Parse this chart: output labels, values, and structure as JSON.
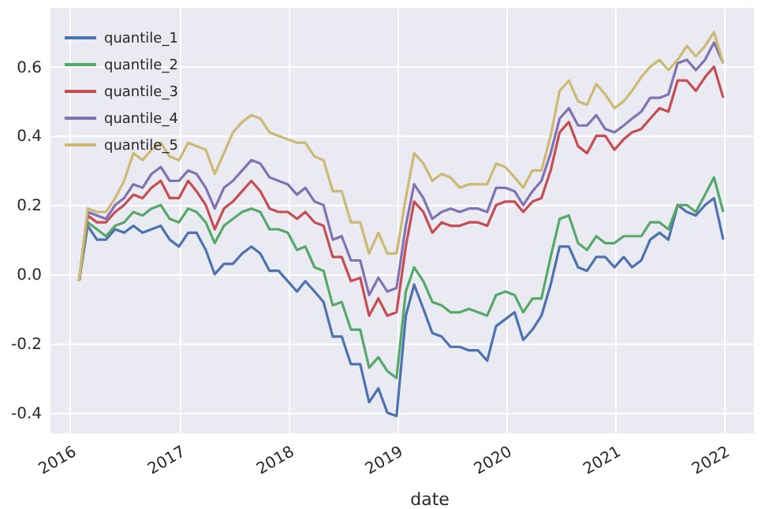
{
  "chart_data": {
    "type": "line",
    "xlabel": "date",
    "x": [
      "2016-01-31",
      "2016-02-29",
      "2016-03-31",
      "2016-04-30",
      "2016-05-31",
      "2016-06-30",
      "2016-07-31",
      "2016-08-31",
      "2016-09-30",
      "2016-10-31",
      "2016-11-30",
      "2016-12-31",
      "2017-01-31",
      "2017-02-28",
      "2017-03-31",
      "2017-04-30",
      "2017-05-31",
      "2017-06-30",
      "2017-07-31",
      "2017-08-31",
      "2017-09-30",
      "2017-10-31",
      "2017-11-30",
      "2017-12-31",
      "2018-01-31",
      "2018-02-28",
      "2018-03-31",
      "2018-04-30",
      "2018-05-31",
      "2018-06-30",
      "2018-07-31",
      "2018-08-31",
      "2018-09-30",
      "2018-10-31",
      "2018-11-30",
      "2018-12-31",
      "2019-01-31",
      "2019-02-28",
      "2019-03-31",
      "2019-04-30",
      "2019-05-31",
      "2019-06-30",
      "2019-07-31",
      "2019-08-31",
      "2019-09-30",
      "2019-10-31",
      "2019-11-30",
      "2019-12-31",
      "2020-01-31",
      "2020-02-29",
      "2020-03-31",
      "2020-04-30",
      "2020-05-31",
      "2020-06-30",
      "2020-07-31",
      "2020-08-31",
      "2020-09-30",
      "2020-10-31",
      "2020-11-30",
      "2020-12-31",
      "2021-01-31",
      "2021-02-28",
      "2021-03-31",
      "2021-04-30",
      "2021-05-31",
      "2021-06-30",
      "2021-07-31",
      "2021-08-31",
      "2021-09-30",
      "2021-10-31",
      "2021-11-30",
      "2021-12-31"
    ],
    "series": [
      {
        "name": "quantile_1",
        "color": "#4c72b0",
        "values": [
          -0.02,
          0.14,
          0.1,
          0.1,
          0.13,
          0.12,
          0.14,
          0.12,
          0.13,
          0.14,
          0.1,
          0.08,
          0.12,
          0.12,
          0.07,
          0.0,
          0.03,
          0.03,
          0.06,
          0.08,
          0.06,
          0.01,
          0.01,
          -0.02,
          -0.05,
          -0.02,
          -0.05,
          -0.08,
          -0.18,
          -0.18,
          -0.26,
          -0.26,
          -0.37,
          -0.33,
          -0.4,
          -0.41,
          -0.12,
          -0.03,
          -0.1,
          -0.17,
          -0.18,
          -0.21,
          -0.21,
          -0.22,
          -0.22,
          -0.25,
          -0.15,
          -0.13,
          -0.11,
          -0.19,
          -0.16,
          -0.12,
          -0.03,
          0.08,
          0.08,
          0.02,
          0.01,
          0.05,
          0.05,
          0.02,
          0.05,
          0.02,
          0.04,
          0.1,
          0.12,
          0.1,
          0.2,
          0.18,
          0.17,
          0.2,
          0.22,
          0.1
        ]
      },
      {
        "name": "quantile_2",
        "color": "#55a868",
        "values": [
          -0.02,
          0.15,
          0.13,
          0.11,
          0.14,
          0.15,
          0.18,
          0.17,
          0.19,
          0.2,
          0.16,
          0.15,
          0.19,
          0.18,
          0.15,
          0.09,
          0.14,
          0.16,
          0.18,
          0.19,
          0.18,
          0.13,
          0.13,
          0.12,
          0.07,
          0.08,
          0.02,
          0.01,
          -0.09,
          -0.08,
          -0.16,
          -0.16,
          -0.27,
          -0.24,
          -0.28,
          -0.3,
          -0.05,
          0.02,
          -0.02,
          -0.08,
          -0.09,
          -0.11,
          -0.11,
          -0.1,
          -0.11,
          -0.12,
          -0.06,
          -0.05,
          -0.06,
          -0.11,
          -0.07,
          -0.07,
          0.05,
          0.16,
          0.17,
          0.09,
          0.07,
          0.11,
          0.09,
          0.09,
          0.11,
          0.11,
          0.11,
          0.15,
          0.15,
          0.13,
          0.2,
          0.2,
          0.18,
          0.23,
          0.28,
          0.18
        ]
      },
      {
        "name": "quantile_3",
        "color": "#c44e52",
        "values": [
          -0.02,
          0.17,
          0.15,
          0.15,
          0.18,
          0.2,
          0.23,
          0.22,
          0.25,
          0.27,
          0.22,
          0.22,
          0.27,
          0.24,
          0.2,
          0.13,
          0.19,
          0.21,
          0.24,
          0.27,
          0.24,
          0.19,
          0.18,
          0.18,
          0.16,
          0.18,
          0.15,
          0.14,
          0.05,
          0.05,
          -0.02,
          -0.01,
          -0.12,
          -0.07,
          -0.12,
          -0.11,
          0.08,
          0.21,
          0.18,
          0.12,
          0.15,
          0.14,
          0.14,
          0.15,
          0.15,
          0.14,
          0.2,
          0.21,
          0.21,
          0.18,
          0.21,
          0.22,
          0.3,
          0.41,
          0.44,
          0.37,
          0.35,
          0.4,
          0.4,
          0.36,
          0.39,
          0.41,
          0.42,
          0.45,
          0.48,
          0.47,
          0.56,
          0.56,
          0.53,
          0.57,
          0.6,
          0.51
        ]
      },
      {
        "name": "quantile_4",
        "color": "#8172b2",
        "values": [
          -0.02,
          0.18,
          0.17,
          0.16,
          0.2,
          0.22,
          0.26,
          0.25,
          0.29,
          0.31,
          0.27,
          0.27,
          0.3,
          0.29,
          0.25,
          0.19,
          0.25,
          0.27,
          0.3,
          0.33,
          0.32,
          0.28,
          0.27,
          0.26,
          0.23,
          0.25,
          0.21,
          0.2,
          0.1,
          0.11,
          0.04,
          0.04,
          -0.06,
          -0.01,
          -0.05,
          -0.04,
          0.14,
          0.26,
          0.22,
          0.16,
          0.18,
          0.19,
          0.18,
          0.19,
          0.19,
          0.18,
          0.25,
          0.25,
          0.24,
          0.2,
          0.24,
          0.27,
          0.35,
          0.45,
          0.48,
          0.43,
          0.43,
          0.46,
          0.42,
          0.41,
          0.43,
          0.45,
          0.47,
          0.51,
          0.51,
          0.52,
          0.61,
          0.62,
          0.59,
          0.62,
          0.67,
          0.61
        ]
      },
      {
        "name": "quantile_5",
        "color": "#ccb974",
        "values": [
          -0.02,
          0.19,
          0.18,
          0.18,
          0.22,
          0.27,
          0.35,
          0.33,
          0.36,
          0.38,
          0.34,
          0.33,
          0.38,
          0.37,
          0.36,
          0.29,
          0.35,
          0.41,
          0.44,
          0.46,
          0.45,
          0.41,
          0.4,
          0.39,
          0.38,
          0.38,
          0.34,
          0.33,
          0.24,
          0.24,
          0.15,
          0.15,
          0.06,
          0.12,
          0.06,
          0.06,
          0.22,
          0.35,
          0.32,
          0.27,
          0.29,
          0.28,
          0.25,
          0.26,
          0.26,
          0.26,
          0.32,
          0.31,
          0.28,
          0.25,
          0.3,
          0.3,
          0.4,
          0.53,
          0.56,
          0.5,
          0.49,
          0.55,
          0.52,
          0.48,
          0.5,
          0.53,
          0.57,
          0.6,
          0.62,
          0.59,
          0.62,
          0.66,
          0.63,
          0.66,
          0.7,
          0.61
        ]
      }
    ],
    "xlim": [
      "2015-10-27",
      "2022-04-13"
    ],
    "xticks": [
      "2016",
      "2017",
      "2018",
      "2019",
      "2020",
      "2021",
      "2022"
    ],
    "ylim": [
      -0.46,
      0.77
    ],
    "yticks": [
      {
        "value": -0.4,
        "label": "-0.4"
      },
      {
        "value": -0.2,
        "label": "-0.2"
      },
      {
        "value": 0,
        "label": "0.0"
      },
      {
        "value": 0.2,
        "label": "0.2"
      },
      {
        "value": 0.4,
        "label": "0.4"
      },
      {
        "value": 0.6,
        "label": "0.6"
      }
    ],
    "grid": true,
    "legend": "top left",
    "line_style": "solid",
    "marker": "none"
  }
}
